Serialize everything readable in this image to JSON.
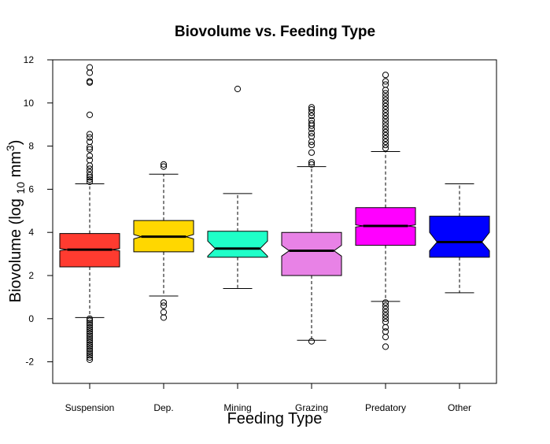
{
  "chart_data": {
    "type": "boxplot",
    "notched": true,
    "title": "Biovolume vs. Feeding Type",
    "xlabel": "Feeding Type",
    "ylabel": {
      "prefix": "Biovolume (log ",
      "subscript": "10",
      "unit": " mm",
      "superscript": "3",
      "suffix": ")"
    },
    "ylim": [
      -3,
      12
    ],
    "yticks": [
      -2,
      0,
      2,
      4,
      6,
      8,
      10,
      12
    ],
    "grid": false,
    "legend": "none",
    "categories": [
      "Suspension",
      "Dep.",
      "Mining",
      "Grazing",
      "Predatory",
      "Other"
    ],
    "series": [
      {
        "color": "#ff3b30",
        "stats": {
          "whisker_low": 0.05,
          "q1": 2.4,
          "median": 3.2,
          "q3": 3.95,
          "whisker_high": 6.25,
          "notch_low": 3.15,
          "notch_high": 3.25
        },
        "outliers": [
          11.65,
          11.4,
          11.0,
          10.95,
          9.45,
          8.55,
          8.4,
          8.2,
          7.95,
          7.85,
          7.55,
          7.35,
          7.1,
          6.95,
          6.8,
          6.65,
          6.55,
          6.45,
          6.35,
          0.0,
          -0.1,
          -0.2,
          -0.3,
          -0.4,
          -0.5,
          -0.6,
          -0.7,
          -0.8,
          -0.9,
          -1.0,
          -1.1,
          -1.2,
          -1.3,
          -1.4,
          -1.5,
          -1.6,
          -1.7,
          -1.8,
          -1.9
        ]
      },
      {
        "color": "#ffd700",
        "stats": {
          "whisker_low": 1.05,
          "q1": 3.1,
          "median": 3.8,
          "q3": 4.55,
          "whisker_high": 6.7,
          "notch_low": 3.7,
          "notch_high": 3.9
        },
        "outliers": [
          7.15,
          7.05,
          0.75,
          0.6,
          0.3,
          0.05
        ]
      },
      {
        "color": "#1fffc8",
        "stats": {
          "whisker_low": 1.4,
          "q1": 2.85,
          "median": 3.25,
          "q3": 4.05,
          "whisker_high": 5.8,
          "notch_low": 2.9,
          "notch_high": 3.6
        },
        "outliers": [
          10.65
        ]
      },
      {
        "color": "#e882e6",
        "stats": {
          "whisker_low": -1.0,
          "q1": 2.0,
          "median": 3.15,
          "q3": 4.0,
          "whisker_high": 7.05,
          "notch_low": 2.9,
          "notch_high": 3.4
        },
        "outliers": [
          9.8,
          9.7,
          9.55,
          9.4,
          9.2,
          9.05,
          8.95,
          8.8,
          8.6,
          8.45,
          8.2,
          8.05,
          7.7,
          7.25,
          7.15,
          -1.05
        ]
      },
      {
        "color": "#ff00ff",
        "stats": {
          "whisker_low": 0.8,
          "q1": 3.4,
          "median": 4.3,
          "q3": 5.15,
          "whisker_high": 7.75,
          "notch_low": 4.25,
          "notch_high": 4.35
        },
        "outliers": [
          11.3,
          11.0,
          10.85,
          10.6,
          10.45,
          10.3,
          10.15,
          10.0,
          9.85,
          9.7,
          9.55,
          9.4,
          9.25,
          9.1,
          8.95,
          8.8,
          8.65,
          8.5,
          8.35,
          8.2,
          8.05,
          7.9,
          0.75,
          0.6,
          0.45,
          0.3,
          0.15,
          0.0,
          -0.15,
          -0.4,
          -0.6,
          -0.85,
          -1.3
        ]
      },
      {
        "color": "#0000ff",
        "stats": {
          "whisker_low": 1.2,
          "q1": 2.85,
          "median": 3.55,
          "q3": 4.75,
          "whisker_high": 6.25,
          "notch_low": 3.15,
          "notch_high": 4.0
        },
        "outliers": []
      }
    ]
  }
}
